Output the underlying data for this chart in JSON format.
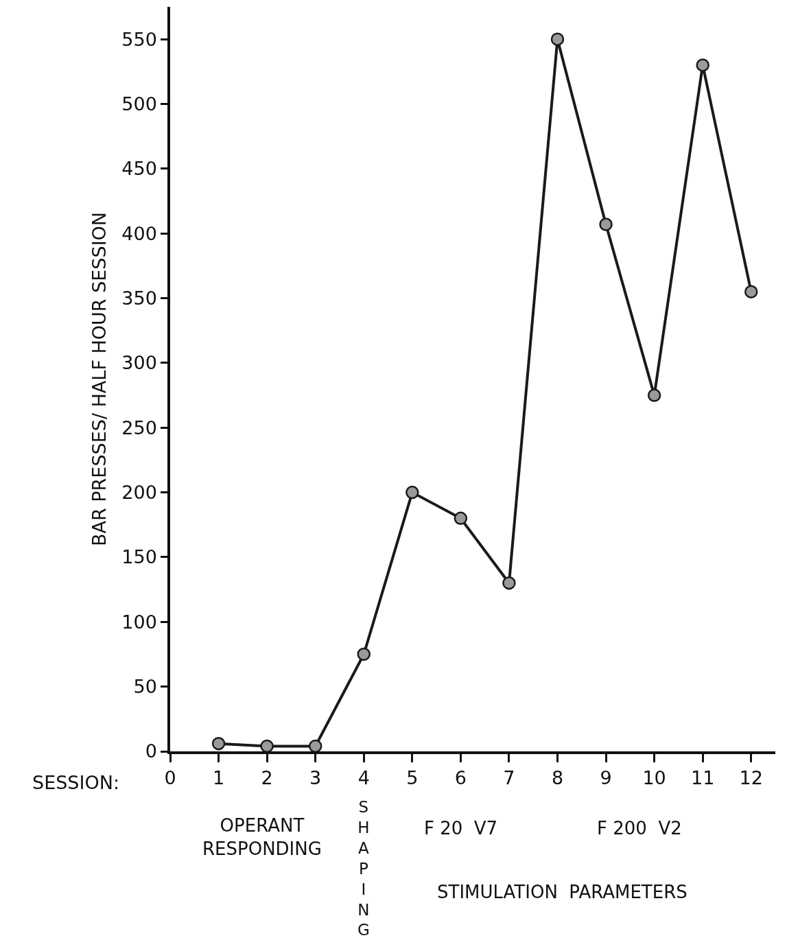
{
  "chart_data": {
    "type": "line",
    "ylabel": "BAR PRESSES/ HALF HOUR SESSION",
    "xlabel": "SESSION:",
    "x": [
      1,
      2,
      3,
      4,
      5,
      6,
      7,
      8,
      9,
      10,
      11,
      12
    ],
    "series": [
      {
        "color": "#1a1a1a",
        "values": [
          6,
          4,
          4,
          75,
          200,
          180,
          130,
          550,
          407,
          275,
          530,
          355
        ]
      }
    ],
    "xlim": [
      0,
      12.5
    ],
    "xticks": [
      0,
      1,
      2,
      3,
      4,
      5,
      6,
      7,
      8,
      9,
      10,
      11,
      12
    ],
    "ylim": [
      0,
      575
    ],
    "yticks": [
      0,
      50,
      100,
      150,
      200,
      250,
      300,
      350,
      400,
      450,
      500,
      550
    ],
    "marker": "circle",
    "line_style": "solid",
    "annotations": [
      "OPERANT\nRESPONDING",
      "SHAPING",
      "F 20  V7",
      "F 200  V2",
      "STIMULATION  PARAMETERS"
    ]
  }
}
